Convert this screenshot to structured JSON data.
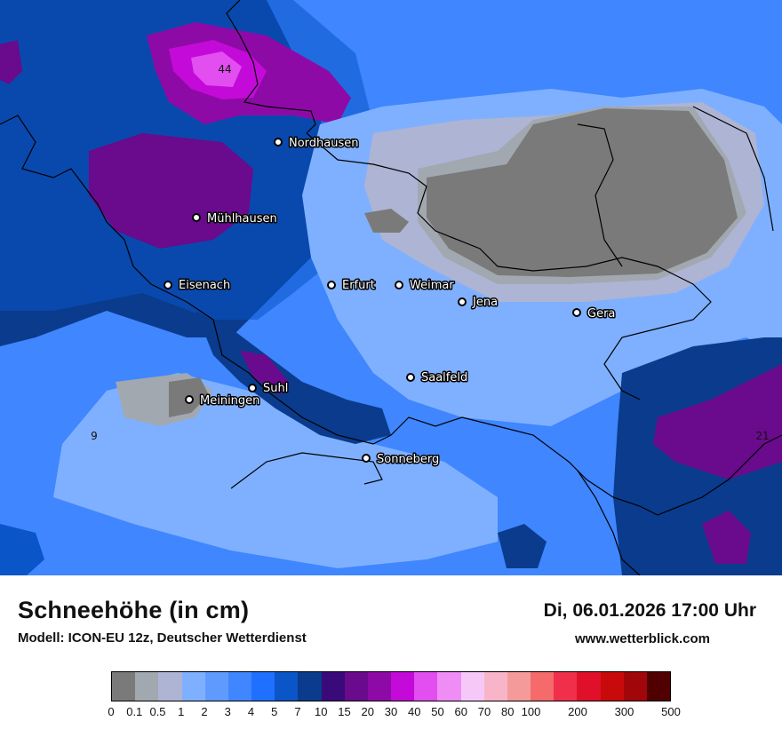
{
  "map": {
    "cities": [
      {
        "name": "Nordhausen"
      },
      {
        "name": "Mühlhausen"
      },
      {
        "name": "Eisenach"
      },
      {
        "name": "Erfurt"
      },
      {
        "name": "Weimar"
      },
      {
        "name": "Jena"
      },
      {
        "name": "Gera"
      },
      {
        "name": "Saalfeld"
      },
      {
        "name": "Suhl"
      },
      {
        "name": "Meiningen"
      },
      {
        "name": "Sonneberg"
      }
    ],
    "value_labels": [
      "44",
      "9",
      "21"
    ]
  },
  "footer": {
    "title": "Schneehöhe (in cm)",
    "model": "Modell: ICON-EU 12z, Deutscher Wetterdienst",
    "datetime": "Di, 06.01.2026 17:00 Uhr",
    "website": "www.wetterblick.com"
  },
  "legend": {
    "colors": [
      "#7a7a7a",
      "#a2a8b0",
      "#aeb4d4",
      "#7fb0ff",
      "#5f9bff",
      "#3f86ff",
      "#1f70ff",
      "#0a55c8",
      "#0b3b8c",
      "#3a0a7a",
      "#6a0a8c",
      "#8e0aa6",
      "#c40ad8",
      "#e24ef0",
      "#f08cf6",
      "#f6c8f8",
      "#f8b4c8",
      "#f59a9a",
      "#f56a6a",
      "#f0304a",
      "#e0102a",
      "#c80a0a",
      "#a0060a",
      "#500000"
    ],
    "ticks": [
      "0",
      "0.1",
      "0.5",
      "1",
      "2",
      "3",
      "4",
      "5",
      "7",
      "10",
      "15",
      "20",
      "30",
      "40",
      "50",
      "60",
      "70",
      "80",
      "100",
      "200",
      "300",
      "500"
    ]
  }
}
